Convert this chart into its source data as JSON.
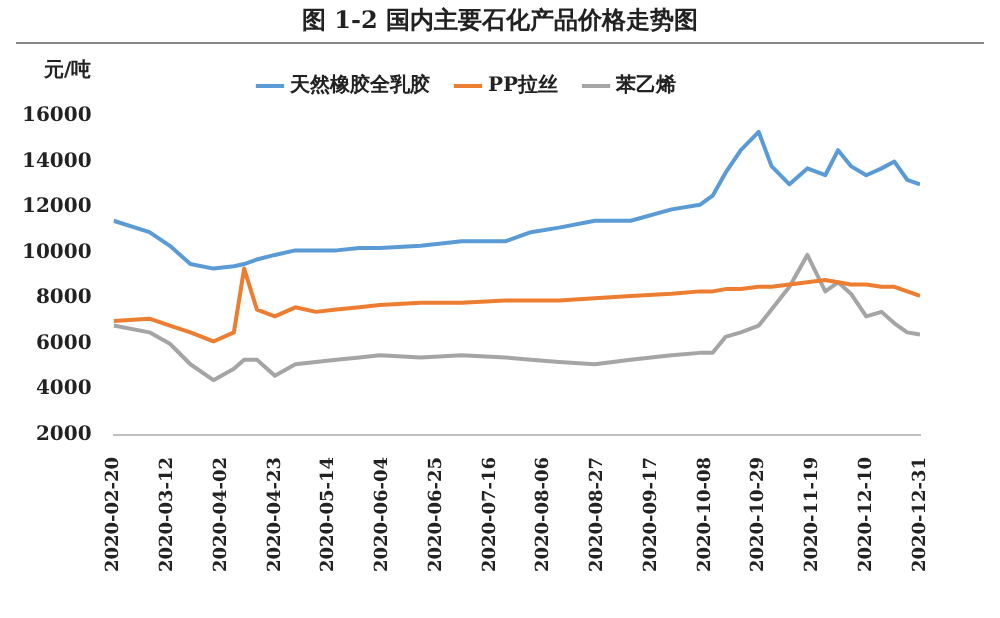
{
  "chart_data": {
    "type": "line",
    "title": "图 1-2  国内主要石化产品价格走势图",
    "ylabel": "元/吨",
    "x": [
      "2020-02-20",
      "2020-03-05",
      "2020-03-13",
      "2020-03-21",
      "2020-03-30",
      "2020-04-07",
      "2020-04-11",
      "2020-04-16",
      "2020-04-23",
      "2020-05-01",
      "2020-05-09",
      "2020-05-17",
      "2020-05-26",
      "2020-06-03",
      "2020-06-19",
      "2020-07-05",
      "2020-07-22",
      "2020-08-01",
      "2020-08-12",
      "2020-08-26",
      "2020-09-09",
      "2020-09-25",
      "2020-10-06",
      "2020-10-11",
      "2020-10-16",
      "2020-10-22",
      "2020-10-29",
      "2020-11-03",
      "2020-11-10",
      "2020-11-17",
      "2020-11-24",
      "2020-11-29",
      "2020-12-04",
      "2020-12-10",
      "2020-12-16",
      "2020-12-21",
      "2020-12-26",
      "2020-12-31"
    ],
    "series": [
      {
        "name": "天然橡胶全乳胶",
        "color": "#5b9bd5",
        "values": [
          11400,
          10900,
          10300,
          9500,
          9300,
          9400,
          9500,
          9700,
          9900,
          10100,
          10100,
          10100,
          10200,
          10200,
          10300,
          10500,
          10500,
          10900,
          11100,
          11400,
          11400,
          11900,
          12100,
          12500,
          13500,
          14500,
          15300,
          13800,
          13000,
          13700,
          13400,
          14500,
          13800,
          13400,
          13700,
          14000,
          13200,
          13000
        ]
      },
      {
        "name": "PP拉丝",
        "color": "#ed7d31",
        "values": [
          7000,
          7100,
          6800,
          6500,
          6100,
          6500,
          9300,
          7500,
          7200,
          7600,
          7400,
          7500,
          7600,
          7700,
          7800,
          7800,
          7900,
          7900,
          7900,
          8000,
          8100,
          8200,
          8300,
          8300,
          8400,
          8400,
          8500,
          8500,
          8600,
          8700,
          8800,
          8700,
          8600,
          8600,
          8500,
          8500,
          8300,
          8100
        ]
      },
      {
        "name": "苯乙烯",
        "color": "#a5a5a5",
        "values": [
          6800,
          6500,
          6000,
          5100,
          4400,
          4900,
          5300,
          5300,
          4600,
          5100,
          5200,
          5300,
          5400,
          5500,
          5400,
          5500,
          5400,
          5300,
          5200,
          5100,
          5300,
          5500,
          5600,
          5600,
          6300,
          6500,
          6800,
          7500,
          8500,
          9900,
          8300,
          8700,
          8200,
          7200,
          7400,
          6900,
          6500,
          6400
        ]
      }
    ],
    "xlim": [
      "2020-02-20",
      "2020-12-31"
    ],
    "xticks": [
      "2020-02-20",
      "2020-03-12",
      "2020-04-02",
      "2020-04-23",
      "2020-05-14",
      "2020-06-04",
      "2020-06-25",
      "2020-07-16",
      "2020-08-06",
      "2020-08-27",
      "2020-09-17",
      "2020-10-08",
      "2020-10-29",
      "2020-11-19",
      "2020-12-10",
      "2020-12-31"
    ],
    "ylim": [
      2000,
      16000
    ],
    "yticks": [
      2000,
      4000,
      6000,
      8000,
      10000,
      12000,
      14000,
      16000
    ],
    "grid": false,
    "legend": "top"
  }
}
